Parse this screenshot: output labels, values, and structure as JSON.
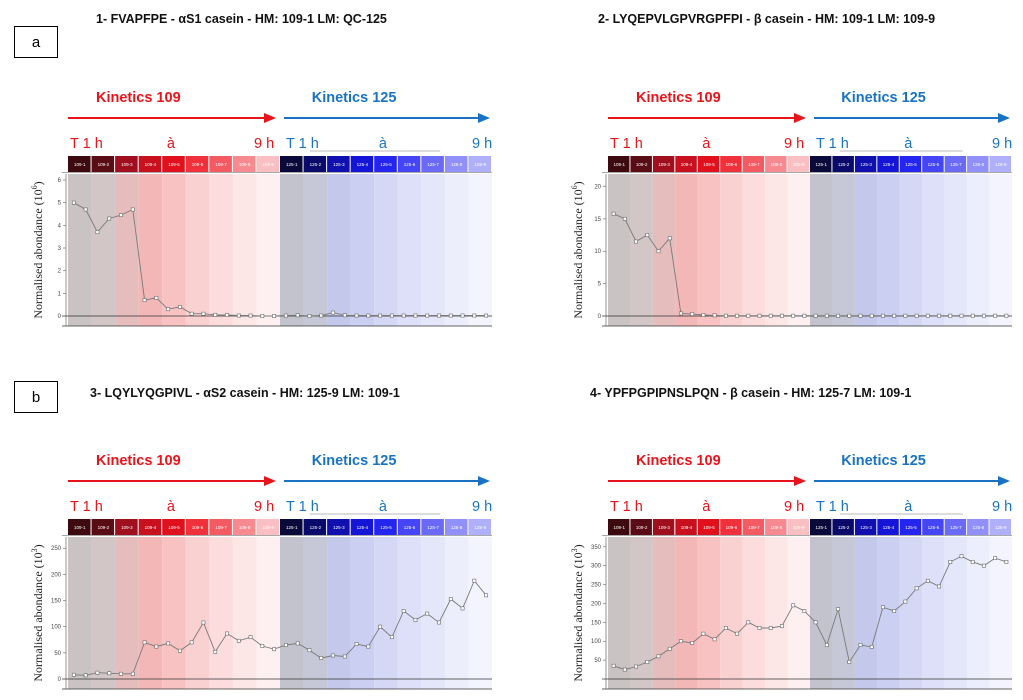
{
  "panel_labels": [
    "a",
    "b"
  ],
  "chart_data": [
    {
      "type": "line",
      "title": "1- FVAPFPE - αS1 casein -    HM:  109-1    LM: QC-125",
      "ylabel_prefix": "Normalised abondance (10",
      "ylabel_exp": "6",
      "ylabel_suffix": ")",
      "ylim": [
        0,
        6
      ],
      "yticks": [
        0,
        1,
        2,
        3,
        4,
        5,
        6
      ],
      "kinetics_a": "Kinetics 109",
      "kinetics_b": "Kinetics 125",
      "t_start_a": "T 1 h",
      "t_mid_a": "à",
      "t_end_a": "9 h",
      "t_start_b": "T 1 h",
      "t_mid_b": "à",
      "t_end_b": "9 h",
      "cells": [
        "109-1",
        "109-2",
        "109-3",
        "109-4",
        "109-5",
        "109-6",
        "109-7",
        "109-8",
        "109-9",
        "125-1",
        "125-2",
        "125-3",
        "125-4",
        "125-5",
        "125-6",
        "125-7",
        "125-8",
        "125-9"
      ],
      "series": [
        {
          "values": [
            5.0,
            4.7,
            3.7,
            4.3,
            4.45,
            4.7,
            0.7,
            0.8,
            0.3,
            0.4,
            0.1,
            0.1,
            0.05,
            0.05,
            0.02,
            0.02,
            0.0,
            0.0,
            0.02,
            0.03,
            0.0,
            0.02,
            0.15,
            0.03,
            0.02,
            0.02,
            0.02,
            0.02,
            0.02,
            0.02,
            0.02,
            0.02,
            0.02,
            0.02,
            0.02,
            0.02
          ]
        }
      ]
    },
    {
      "type": "line",
      "title": "2- LYQEPVLGPVRGPFPI - β casein -    HM: 109-1    LM: 109-9",
      "ylabel_prefix": "Normalised abondance (10",
      "ylabel_exp": "6",
      "ylabel_suffix": ")",
      "ylim": [
        0,
        21
      ],
      "yticks": [
        0,
        5,
        10,
        15,
        20
      ],
      "kinetics_a": "Kinetics 109",
      "kinetics_b": "Kinetics 125",
      "t_start_a": "T 1 h",
      "t_mid_a": "à",
      "t_end_a": "9 h",
      "t_start_b": "T 1 h",
      "t_mid_b": "à",
      "t_end_b": "9 h",
      "cells": [
        "109-1",
        "109-2",
        "109-3",
        "109-4",
        "109-5",
        "109-6",
        "109-7",
        "109-8",
        "109-9",
        "125-1",
        "125-2",
        "125-3",
        "125-4",
        "125-5",
        "125-6",
        "125-7",
        "125-8",
        "125-9"
      ],
      "series": [
        {
          "values": [
            15.8,
            15.0,
            11.5,
            12.5,
            10.0,
            12.0,
            0.4,
            0.3,
            0.15,
            0.1,
            0.05,
            0.05,
            0.05,
            0.05,
            0.05,
            0.05,
            0.05,
            0.05,
            0.05,
            0.05,
            0.05,
            0.05,
            0.05,
            0.05,
            0.05,
            0.05,
            0.05,
            0.05,
            0.05,
            0.05,
            0.05,
            0.05,
            0.05,
            0.05,
            0.05,
            0.05
          ]
        }
      ]
    },
    {
      "type": "line",
      "title": "3- LQYLYQGPIVL - αS2 casein -    HM: 125-9    LM: 109-1",
      "ylabel_prefix": "Normalised abondance (10",
      "ylabel_exp": "3",
      "ylabel_suffix": ")",
      "ylim": [
        0,
        260
      ],
      "yticks": [
        0,
        50,
        100,
        150,
        200,
        250
      ],
      "kinetics_a": "Kinetics 109",
      "kinetics_b": "Kinetics 125",
      "t_start_a": "T 1 h",
      "t_mid_a": "à",
      "t_end_a": "9 h",
      "t_start_b": "T 1 h",
      "t_mid_b": "à",
      "t_end_b": "9 h",
      "cells": [
        "109-1",
        "109-2",
        "109-3",
        "109-4",
        "109-5",
        "109-6",
        "109-7",
        "109-8",
        "109-9",
        "125-1",
        "125-2",
        "125-3",
        "125-4",
        "125-5",
        "125-6",
        "125-7",
        "125-8",
        "125-9"
      ],
      "series": [
        {
          "values": [
            8,
            7,
            12,
            11,
            10,
            10,
            70,
            62,
            68,
            54,
            70,
            108,
            52,
            87,
            73,
            80,
            63,
            57,
            65,
            68,
            55,
            40,
            45,
            43,
            67,
            62,
            100,
            80,
            130,
            113,
            125,
            108,
            153,
            135,
            188,
            160
          ]
        }
      ]
    },
    {
      "type": "line",
      "title": "4- YPFPGPIPNSLPQN - β casein -    HM: 125-7    LM: 109-1",
      "ylabel_prefix": "Normalised abondance (10",
      "ylabel_exp": "3",
      "ylabel_suffix": ")",
      "ylim": [
        0,
        360
      ],
      "yticks": [
        50,
        100,
        150,
        200,
        250,
        300,
        350
      ],
      "kinetics_a": "Kinetics 109",
      "kinetics_b": "Kinetics 125",
      "t_start_a": "T 1 h",
      "t_mid_a": "à",
      "t_end_a": "9 h",
      "t_start_b": "T 1 h",
      "t_mid_b": "à",
      "t_end_b": "9 h",
      "cells": [
        "109-1",
        "109-2",
        "109-3",
        "109-4",
        "109-5",
        "109-6",
        "109-7",
        "109-8",
        "109-9",
        "125-1",
        "125-2",
        "125-3",
        "125-4",
        "125-5",
        "125-6",
        "125-7",
        "125-8",
        "125-9"
      ],
      "series": [
        {
          "values": [
            35,
            25,
            33,
            45,
            60,
            80,
            100,
            95,
            120,
            105,
            135,
            120,
            150,
            135,
            135,
            140,
            195,
            180,
            150,
            90,
            185,
            45,
            90,
            85,
            190,
            180,
            205,
            240,
            260,
            245,
            310,
            325,
            310,
            300,
            320,
            310
          ]
        }
      ]
    }
  ]
}
